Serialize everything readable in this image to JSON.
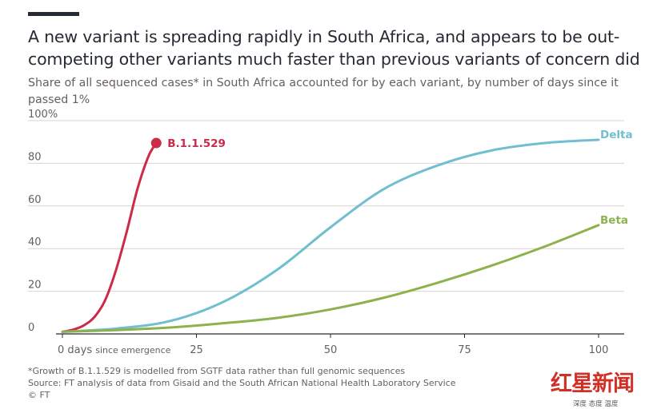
{
  "header": {
    "title": "A new variant is spreading rapidly in South Africa, and appears to be out-competing other variants much faster than previous variants of concern did",
    "subtitle": "Share of all sequenced cases* in South Africa accounted for by each variant, by number of days since it passed 1%"
  },
  "footer": {
    "note": "*Growth of B.1.1.529 is modelled from SGTF data rather than full genomic sequences",
    "source": "Source: FT analysis of data from Gisaid and the South African National Health Laboratory Service",
    "credit": "© FT"
  },
  "watermark": {
    "main": "红星新闻",
    "sub": "深度 态度 温度"
  },
  "colors": {
    "b11529": "#cc2a47",
    "delta": "#6fbfce",
    "beta": "#8db24d",
    "grid": "#d9d4cf",
    "axis": "#262a33",
    "tick_text": "#66605c"
  },
  "chart_data": {
    "type": "line",
    "title": "Share of all sequenced cases* in South Africa accounted for by each variant, by number of days since it passed 1%",
    "xlabel": "days since emergence",
    "ylabel": "",
    "xlim": [
      0,
      100
    ],
    "ylim": [
      0,
      100
    ],
    "x_ticks": [
      0,
      25,
      50,
      75,
      100
    ],
    "x_tick_labels": [
      "0 days since emergence",
      "25",
      "50",
      "75",
      "100"
    ],
    "y_ticks": [
      0,
      20,
      40,
      60,
      80,
      100
    ],
    "y_tick_labels": [
      "0",
      "20",
      "40",
      "60",
      "80",
      "100%"
    ],
    "grid": true,
    "series": [
      {
        "name": "B.1.1.529",
        "color": "#cc2a47",
        "end_marker": true,
        "x": [
          0,
          2,
          4,
          6,
          8,
          10,
          12,
          14,
          16,
          17.5
        ],
        "y": [
          1,
          2,
          4,
          8,
          16,
          30,
          48,
          68,
          83,
          89.5
        ]
      },
      {
        "name": "Delta",
        "color": "#6fbfce",
        "end_marker": false,
        "x": [
          0,
          10,
          20,
          30,
          40,
          50,
          60,
          70,
          80,
          90,
          100
        ],
        "y": [
          1,
          2.5,
          6,
          15,
          30,
          50,
          68,
          79,
          86,
          89.5,
          91
        ]
      },
      {
        "name": "Beta",
        "color": "#8db24d",
        "end_marker": false,
        "x": [
          0,
          10,
          20,
          30,
          40,
          50,
          60,
          70,
          80,
          90,
          100
        ],
        "y": [
          1,
          1.8,
          3,
          5,
          7.5,
          11.5,
          17,
          24,
          32,
          41,
          51
        ]
      }
    ]
  }
}
